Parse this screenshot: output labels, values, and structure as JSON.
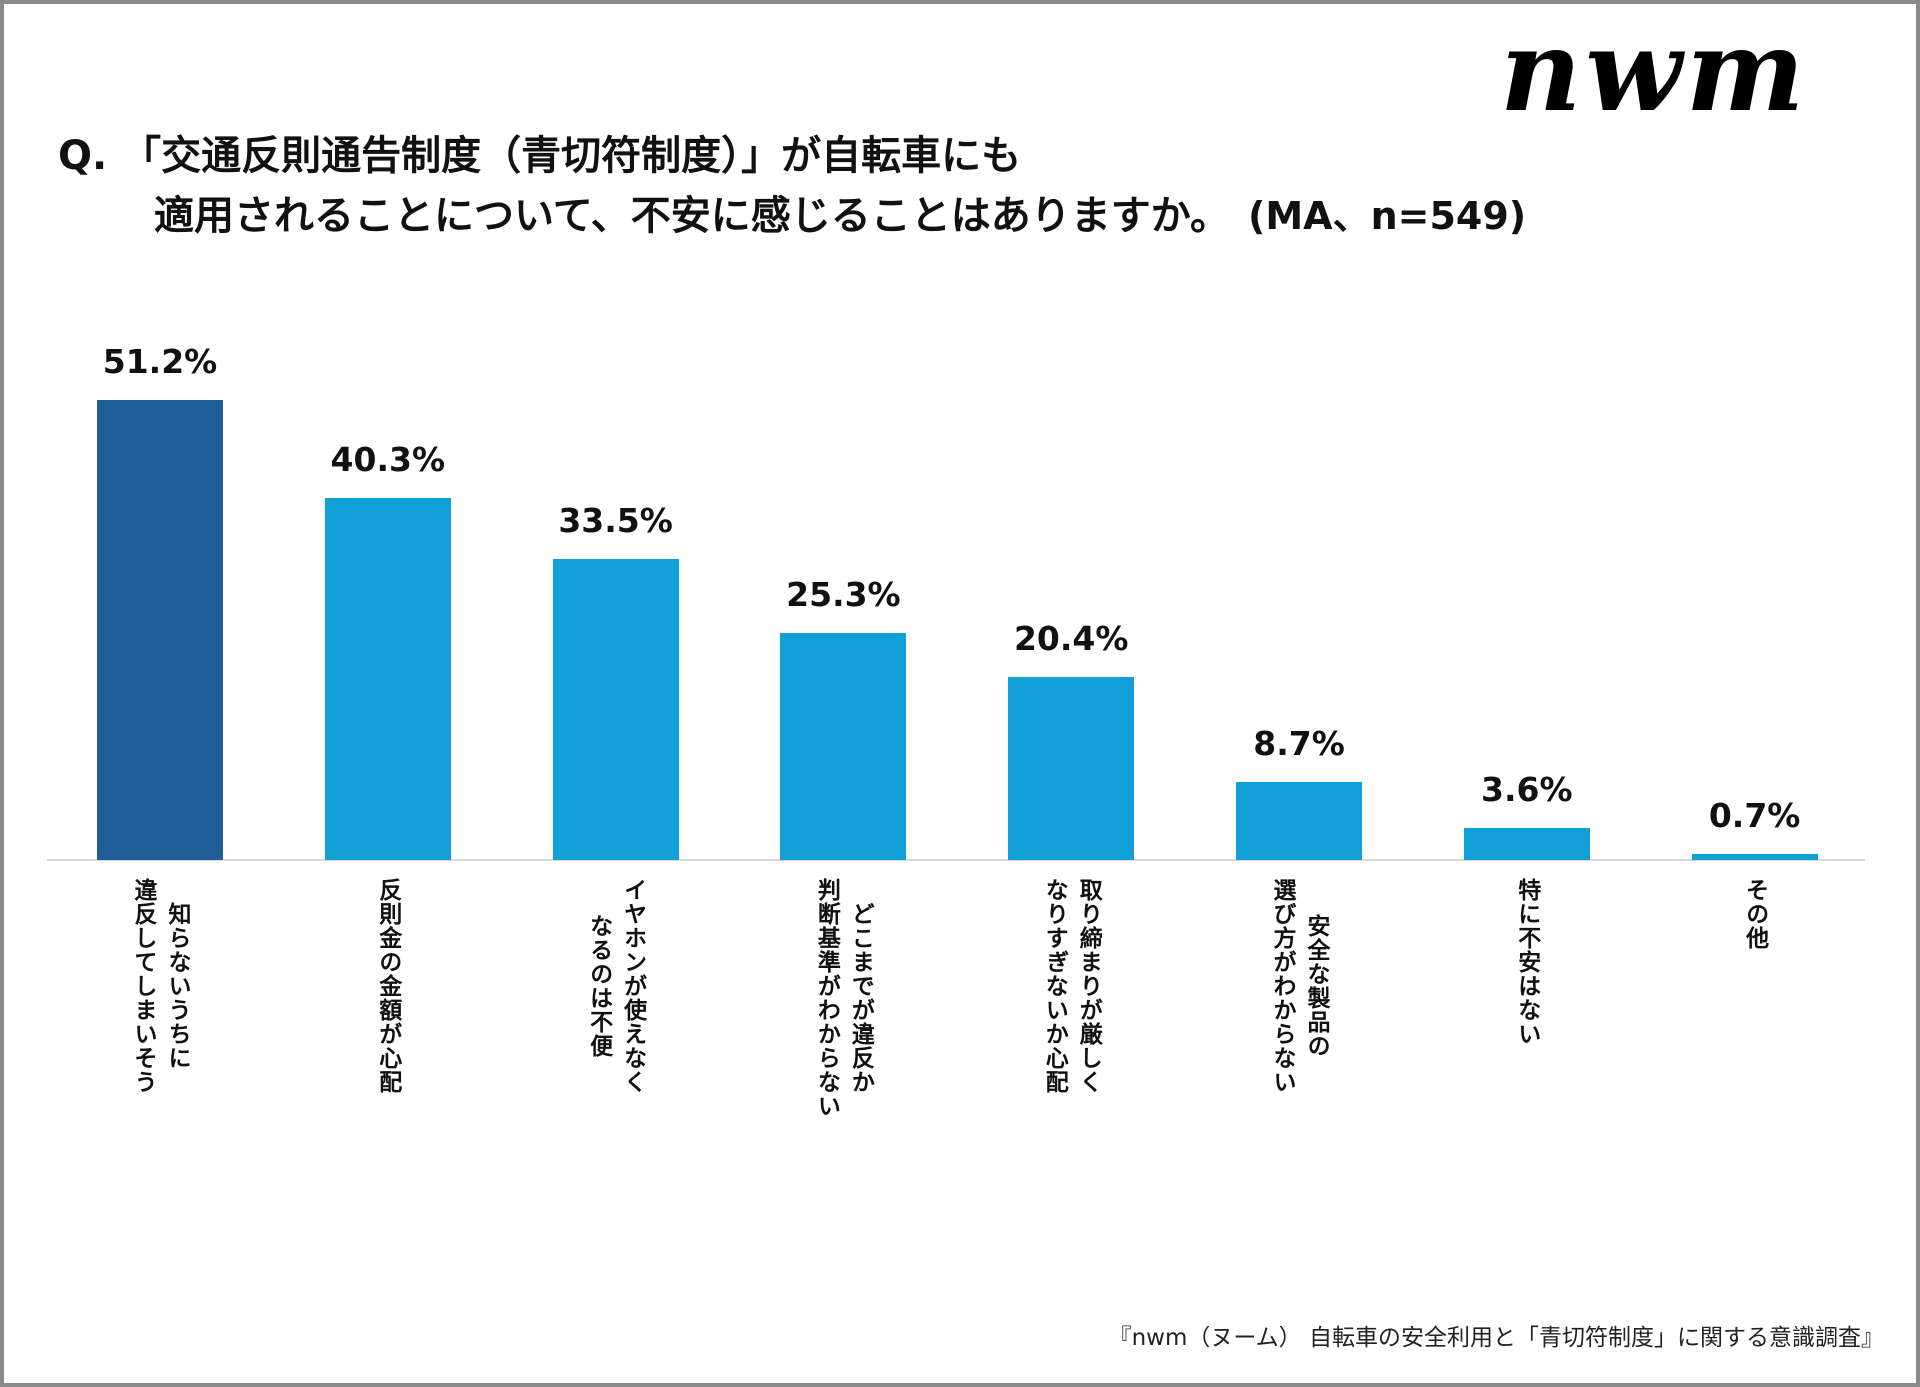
{
  "logo": "nwm",
  "title": {
    "line1": "Q. 「交通反則通告制度（青切符制度）」が自転車にも",
    "line2": "適用されることについて、不安に感じることはありますか。",
    "note": "(MA、n=549)"
  },
  "chart_data": {
    "type": "bar",
    "categories": [
      "知らないうちに\n違反してしまいそう",
      "反則金の金額が心配",
      "イヤホンが使えなく\nなるのは不便",
      "どこまでが違反か\n判断基準がわからない",
      "取り締まりが厳しく\nなりすぎないか心配",
      "安全な製品の\n選び方がわからない",
      "特に不安はない",
      "その他"
    ],
    "values": [
      51.2,
      40.3,
      33.5,
      25.3,
      20.4,
      8.7,
      3.6,
      0.7
    ],
    "labels": [
      "51.2%",
      "40.3%",
      "33.5%",
      "25.3%",
      "20.4%",
      "8.7%",
      "3.6%",
      "0.7%"
    ],
    "unit": "%",
    "ylim": [
      0,
      100
    ],
    "grid": false,
    "colors": {
      "highlight": "#215e99",
      "default": "#119fd7"
    }
  },
  "footer": "『nwm（ヌーム） 自転車の安全利用と「青切符制度」に関する意識調査』"
}
